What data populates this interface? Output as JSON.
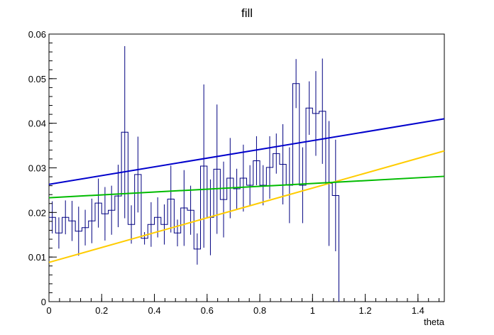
{
  "chart_data": {
    "type": "line",
    "title": "fill",
    "xlabel": "theta",
    "ylabel": "",
    "xlim": [
      0,
      1.5
    ],
    "ylim": [
      0,
      0.06
    ],
    "grid": false,
    "x_ticks": [
      "0",
      "0.2",
      "0.4",
      "0.6",
      "0.8",
      "1",
      "1.2",
      "1.4"
    ],
    "y_ticks": [
      "0",
      "0.01",
      "0.02",
      "0.03",
      "0.04",
      "0.05",
      "0.06"
    ],
    "histogram": {
      "name": "",
      "color": "#000080",
      "bin_width": 0.025,
      "x_start": 0,
      "values": [
        0.0189,
        0.0154,
        0.0189,
        0.0181,
        0.0158,
        0.0166,
        0.0181,
        0.0221,
        0.0197,
        0.0205,
        0.0237,
        0.038,
        0.0173,
        0.0285,
        0.0142,
        0.0173,
        0.0189,
        0.0173,
        0.023,
        0.0154,
        0.021,
        0.0205,
        0.0118,
        0.0304,
        0.0189,
        0.0297,
        0.0229,
        0.0277,
        0.0253,
        0.0277,
        0.0261,
        0.0316,
        0.0261,
        0.0301,
        0.0332,
        0.0308,
        0.0261,
        0.0489,
        0.0261,
        0.0434,
        0.0422,
        0.0427,
        0.0265,
        0.0238
      ],
      "errors": [
        0.0036,
        0.0035,
        0.0038,
        0.0045,
        0.0055,
        0.004,
        0.005,
        0.0055,
        0.006,
        0.0055,
        0.007,
        0.0193,
        0.0043,
        0.0085,
        0.0014,
        0.005,
        0.0045,
        0.0045,
        0.0075,
        0.003,
        0.0085,
        0.0055,
        0.0035,
        0.0183,
        0.0085,
        0.0145,
        0.0085,
        0.009,
        0.0045,
        0.0075,
        0.0045,
        0.0055,
        0.0045,
        0.007,
        0.0045,
        0.009,
        0.0085,
        0.0055,
        0.0085,
        0.006,
        0.0095,
        0.0118,
        0.014,
        0.0125
      ]
    },
    "series": [
      {
        "name": "",
        "color": "#0000cc",
        "x": [
          0,
          1.5
        ],
        "y": [
          0.0263,
          0.041
        ]
      },
      {
        "name": "",
        "color": "#ffcc00",
        "x": [
          0,
          1.5
        ],
        "y": [
          0.0088,
          0.0338
        ]
      },
      {
        "name": "",
        "color": "#00bb00",
        "x": [
          0,
          1.5
        ],
        "y": [
          0.0233,
          0.0281
        ]
      }
    ]
  }
}
